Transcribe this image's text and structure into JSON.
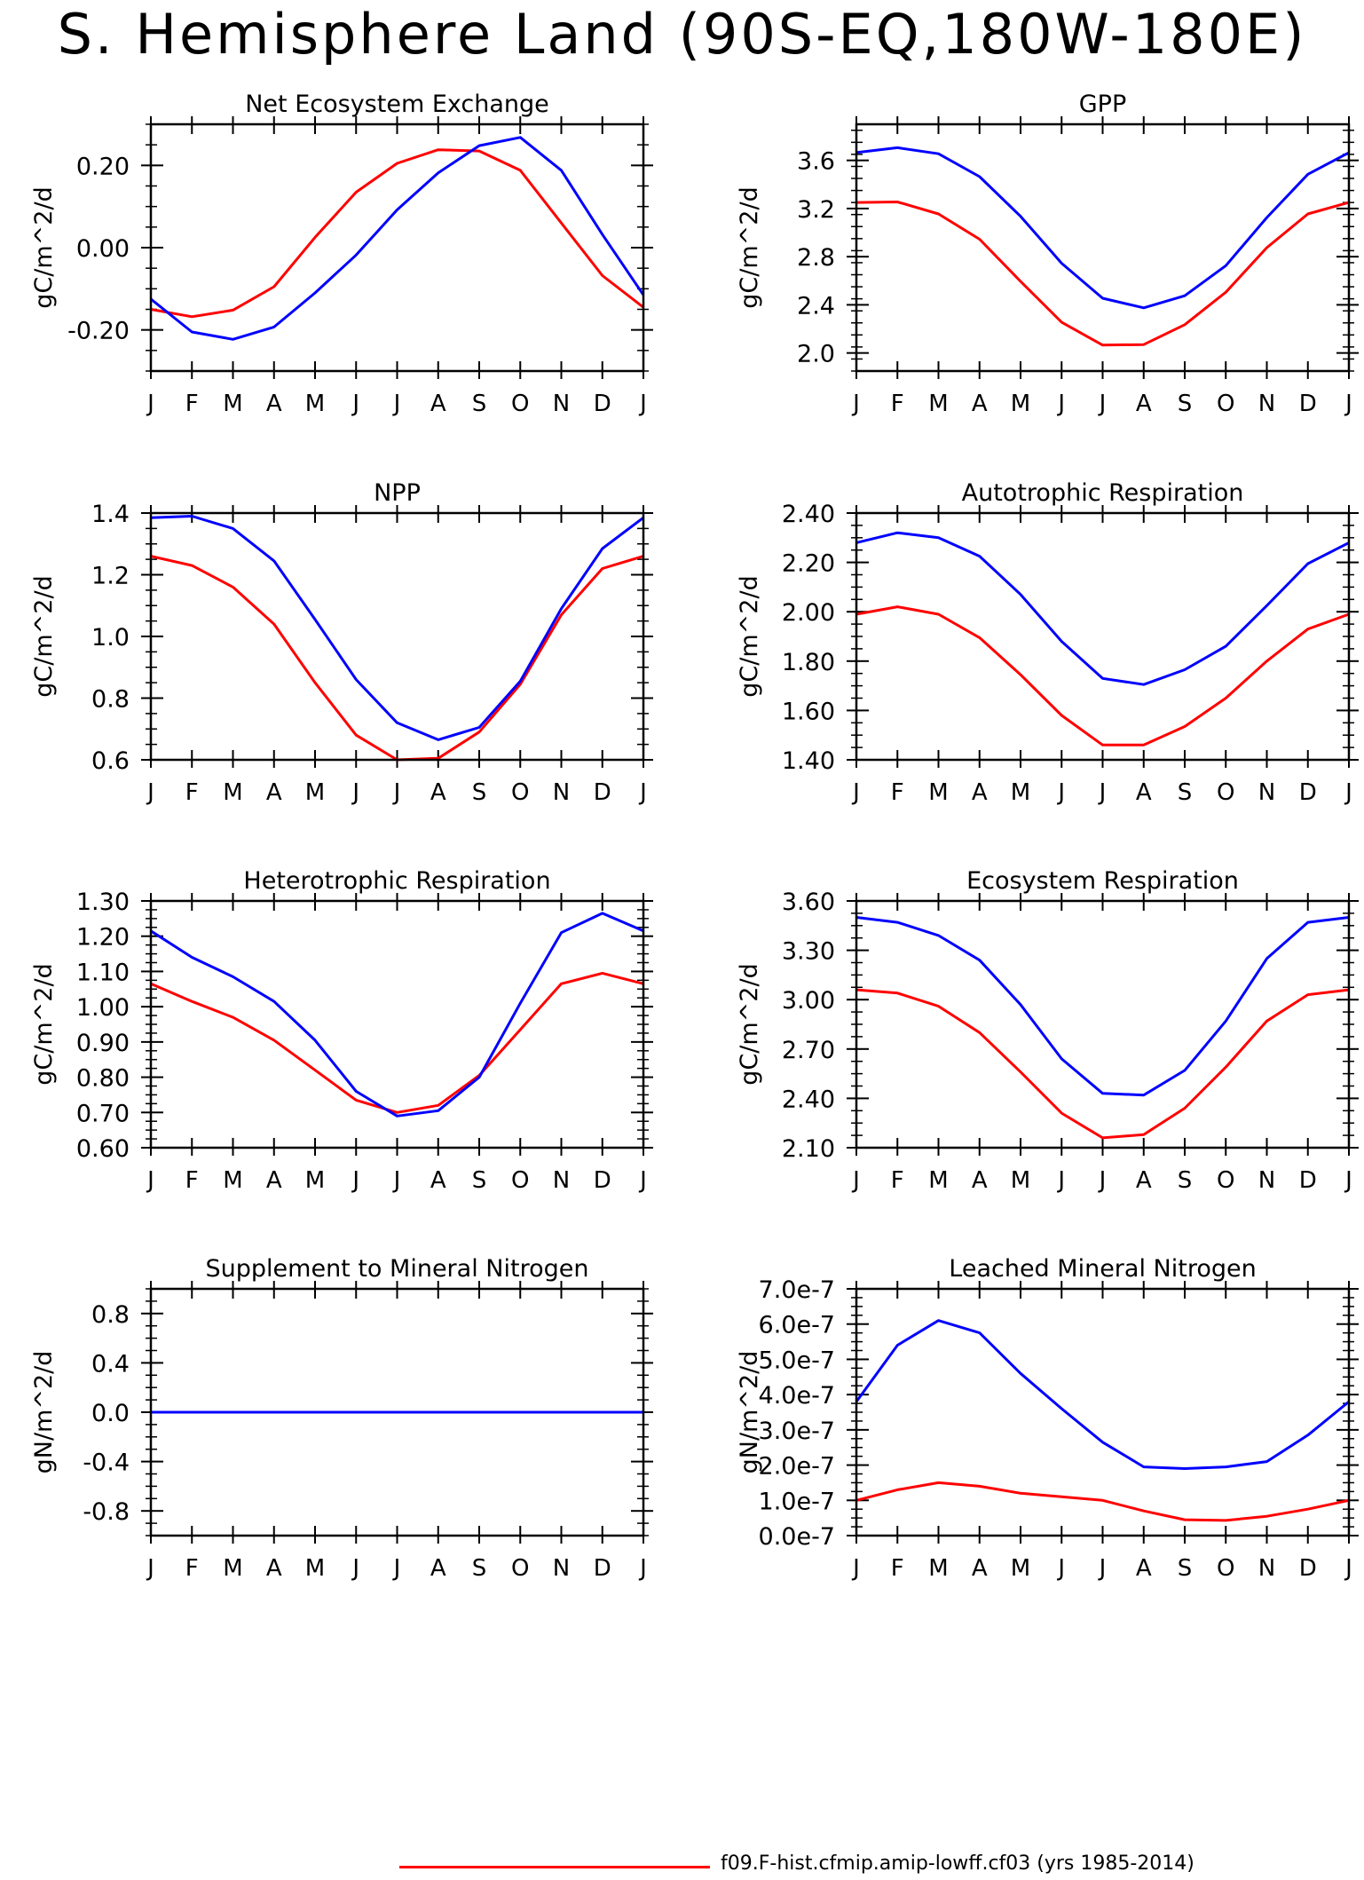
{
  "page_title": "S. Hemisphere Land (90S-EQ,180W-180E)",
  "legend": {
    "red_label": "f09.F-hist.cfmip.amip-lowff.cf03 (yrs 1985-2014)",
    "red_color": "#ff0000",
    "blue_color": "#0000ff"
  },
  "chart_data": [
    {
      "type": "line",
      "title": "Net Ecosystem Exchange",
      "ylabel": "gC/m^2/d",
      "categories": [
        "J",
        "F",
        "M",
        "A",
        "M",
        "J",
        "J",
        "A",
        "S",
        "O",
        "N",
        "D",
        "J"
      ],
      "ylim": [
        -0.3,
        0.3
      ],
      "yticks": [
        -0.2,
        0.0,
        0.2
      ],
      "ytick_labels": [
        "-0.20",
        "0.00",
        "0.20"
      ],
      "series": [
        {
          "color": "#ff0000",
          "values": [
            -0.15,
            -0.168,
            -0.152,
            -0.095,
            0.025,
            0.135,
            0.205,
            0.238,
            0.235,
            0.188,
            0.06,
            -0.068,
            -0.145
          ]
        },
        {
          "color": "#0000ff",
          "values": [
            -0.125,
            -0.205,
            -0.223,
            -0.193,
            -0.11,
            -0.018,
            0.092,
            0.182,
            0.248,
            0.268,
            0.188,
            0.032,
            -0.115
          ]
        }
      ]
    },
    {
      "type": "line",
      "title": "GPP",
      "ylabel": "gC/m^2/d",
      "categories": [
        "J",
        "F",
        "M",
        "A",
        "M",
        "J",
        "J",
        "A",
        "S",
        "O",
        "N",
        "D",
        "J"
      ],
      "ylim": [
        1.85,
        3.9
      ],
      "yticks": [
        2.0,
        2.4,
        2.8,
        3.2,
        3.6
      ],
      "ytick_labels": [
        "2.0",
        "2.4",
        "2.8",
        "3.2",
        "3.6"
      ],
      "series": [
        {
          "color": "#ff0000",
          "values": [
            3.25,
            3.255,
            3.155,
            2.945,
            2.595,
            2.255,
            2.065,
            2.07,
            2.235,
            2.505,
            2.875,
            3.155,
            3.25
          ]
        },
        {
          "color": "#0000ff",
          "values": [
            3.665,
            3.705,
            3.655,
            3.465,
            3.135,
            2.745,
            2.455,
            2.375,
            2.475,
            2.725,
            3.125,
            3.485,
            3.665
          ]
        }
      ]
    },
    {
      "type": "line",
      "title": "NPP",
      "ylabel": "gC/m^2/d",
      "categories": [
        "J",
        "F",
        "M",
        "A",
        "M",
        "J",
        "J",
        "A",
        "S",
        "O",
        "N",
        "D",
        "J"
      ],
      "ylim": [
        0.6,
        1.4
      ],
      "yticks": [
        0.6,
        0.8,
        1.0,
        1.2,
        1.4
      ],
      "ytick_labels": [
        "0.6",
        "0.8",
        "1.0",
        "1.2",
        "1.4"
      ],
      "series": [
        {
          "color": "#ff0000",
          "values": [
            1.26,
            1.23,
            1.16,
            1.04,
            0.85,
            0.68,
            0.6,
            0.605,
            0.69,
            0.845,
            1.07,
            1.22,
            1.26
          ]
        },
        {
          "color": "#0000ff",
          "values": [
            1.385,
            1.39,
            1.35,
            1.245,
            1.055,
            0.86,
            0.72,
            0.665,
            0.705,
            0.855,
            1.09,
            1.285,
            1.385
          ]
        }
      ]
    },
    {
      "type": "line",
      "title": "Autotrophic Respiration",
      "ylabel": "gC/m^2/d",
      "categories": [
        "J",
        "F",
        "M",
        "A",
        "M",
        "J",
        "J",
        "A",
        "S",
        "O",
        "N",
        "D",
        "J"
      ],
      "ylim": [
        1.4,
        2.4
      ],
      "yticks": [
        1.4,
        1.6,
        1.8,
        2.0,
        2.2,
        2.4
      ],
      "ytick_labels": [
        "1.40",
        "1.60",
        "1.80",
        "2.00",
        "2.20",
        "2.40"
      ],
      "series": [
        {
          "color": "#ff0000",
          "values": [
            1.99,
            2.02,
            1.99,
            1.895,
            1.745,
            1.58,
            1.46,
            1.46,
            1.535,
            1.65,
            1.8,
            1.93,
            1.99
          ]
        },
        {
          "color": "#0000ff",
          "values": [
            2.28,
            2.32,
            2.3,
            2.225,
            2.07,
            1.88,
            1.73,
            1.705,
            1.765,
            1.86,
            2.025,
            2.195,
            2.28
          ]
        }
      ]
    },
    {
      "type": "line",
      "title": "Heterotrophic Respiration",
      "ylabel": "gC/m^2/d",
      "categories": [
        "J",
        "F",
        "M",
        "A",
        "M",
        "J",
        "J",
        "A",
        "S",
        "O",
        "N",
        "D",
        "J"
      ],
      "ylim": [
        0.6,
        1.3
      ],
      "yticks": [
        0.6,
        0.7,
        0.8,
        0.9,
        1.0,
        1.1,
        1.2,
        1.3
      ],
      "ytick_labels": [
        "0.60",
        "0.70",
        "0.80",
        "0.90",
        "1.00",
        "1.10",
        "1.20",
        "1.30"
      ],
      "series": [
        {
          "color": "#ff0000",
          "values": [
            1.065,
            1.015,
            0.97,
            0.905,
            0.82,
            0.735,
            0.7,
            0.72,
            0.805,
            0.935,
            1.065,
            1.095,
            1.065
          ]
        },
        {
          "color": "#0000ff",
          "values": [
            1.215,
            1.14,
            1.085,
            1.015,
            0.905,
            0.76,
            0.69,
            0.705,
            0.8,
            1.01,
            1.21,
            1.265,
            1.215
          ]
        }
      ]
    },
    {
      "type": "line",
      "title": "Ecosystem Respiration",
      "ylabel": "gC/m^2/d",
      "categories": [
        "J",
        "F",
        "M",
        "A",
        "M",
        "J",
        "J",
        "A",
        "S",
        "O",
        "N",
        "D",
        "J"
      ],
      "ylim": [
        2.1,
        3.6
      ],
      "yticks": [
        2.1,
        2.4,
        2.7,
        3.0,
        3.3,
        3.6
      ],
      "ytick_labels": [
        "2.10",
        "2.40",
        "2.70",
        "3.00",
        "3.30",
        "3.60"
      ],
      "series": [
        {
          "color": "#ff0000",
          "values": [
            3.06,
            3.04,
            2.96,
            2.8,
            2.56,
            2.31,
            2.16,
            2.18,
            2.34,
            2.59,
            2.87,
            3.03,
            3.06
          ]
        },
        {
          "color": "#0000ff",
          "values": [
            3.5,
            3.47,
            3.39,
            3.24,
            2.97,
            2.64,
            2.43,
            2.42,
            2.57,
            2.87,
            3.25,
            3.47,
            3.5
          ]
        }
      ]
    },
    {
      "type": "line",
      "title": "Supplement to Mineral Nitrogen",
      "ylabel": "gN/m^2/d",
      "categories": [
        "J",
        "F",
        "M",
        "A",
        "M",
        "J",
        "J",
        "A",
        "S",
        "O",
        "N",
        "D",
        "J"
      ],
      "ylim": [
        -1.0,
        1.0
      ],
      "yticks": [
        -0.8,
        -0.4,
        0.0,
        0.4,
        0.8
      ],
      "ytick_labels": [
        "-0.8",
        "-0.4",
        "0.0",
        "0.4",
        "0.8"
      ],
      "series": [
        {
          "color": "#ff0000",
          "values": [
            0,
            0,
            0,
            0,
            0,
            0,
            0,
            0,
            0,
            0,
            0,
            0,
            0
          ]
        },
        {
          "color": "#0000ff",
          "values": [
            0,
            0,
            0,
            0,
            0,
            0,
            0,
            0,
            0,
            0,
            0,
            0,
            0
          ]
        }
      ]
    },
    {
      "type": "line",
      "title": "Leached Mineral Nitrogen",
      "ylabel": "gN/m^2/d",
      "categories": [
        "J",
        "F",
        "M",
        "A",
        "M",
        "J",
        "J",
        "A",
        "S",
        "O",
        "N",
        "D",
        "J"
      ],
      "ylim": [
        0,
        7e-07
      ],
      "yticks": [
        0,
        1e-07,
        2e-07,
        3e-07,
        4e-07,
        5e-07,
        6e-07,
        7e-07
      ],
      "ytick_labels": [
        "0.0e-7",
        "1.0e-7",
        "2.0e-7",
        "3.0e-7",
        "4.0e-7",
        "5.0e-7",
        "6.0e-7",
        "7.0e-7"
      ],
      "series": [
        {
          "color": "#ff0000",
          "values": [
            1e-07,
            1.3e-07,
            1.5e-07,
            1.4e-07,
            1.2e-07,
            1.1e-07,
            1e-07,
            7e-08,
            4.5e-08,
            4.3e-08,
            5.5e-08,
            7.5e-08,
            1e-07
          ]
        },
        {
          "color": "#0000ff",
          "values": [
            3.8e-07,
            5.4e-07,
            6.1e-07,
            5.75e-07,
            4.6e-07,
            3.6e-07,
            2.65e-07,
            1.95e-07,
            1.9e-07,
            1.95e-07,
            2.1e-07,
            2.85e-07,
            3.8e-07
          ]
        }
      ]
    }
  ]
}
